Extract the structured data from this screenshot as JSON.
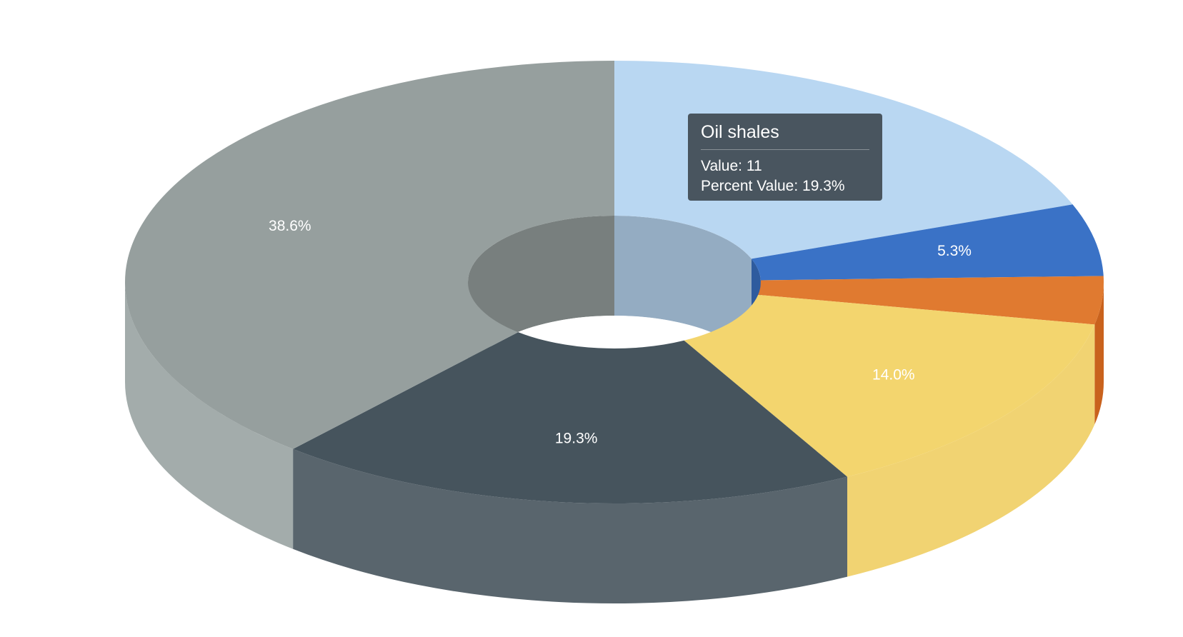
{
  "chart_data": {
    "type": "pie",
    "donut": true,
    "three_d": true,
    "slices": [
      {
        "value": 11,
        "percent": "19.3%",
        "color": "#b9d7f2",
        "side_color": "#9fc0e0",
        "show_label": false
      },
      {
        "value": 3,
        "percent": "5.3%",
        "color": "#3a72c6",
        "side_color": "#2f5fa6",
        "show_label": true
      },
      {
        "value": 2,
        "percent": "3.5%",
        "color": "#e07a30",
        "side_color": "#c9621d",
        "show_label": false
      },
      {
        "value": 8,
        "percent": "14.0%",
        "color": "#f3d56e",
        "side_color": "#f1d372",
        "show_label": true
      },
      {
        "value": 11,
        "percent": "19.3%",
        "color": "#46545d",
        "side_color": "#59656d",
        "show_label": true
      },
      {
        "value": 22,
        "percent": "38.6%",
        "color": "#969f9e",
        "side_color": "#a3acab",
        "show_label": true
      }
    ],
    "tooltip": {
      "title": "Oil shales",
      "value_line": "Value: 11",
      "percent_line": "Percent Value: 19.3%"
    }
  }
}
